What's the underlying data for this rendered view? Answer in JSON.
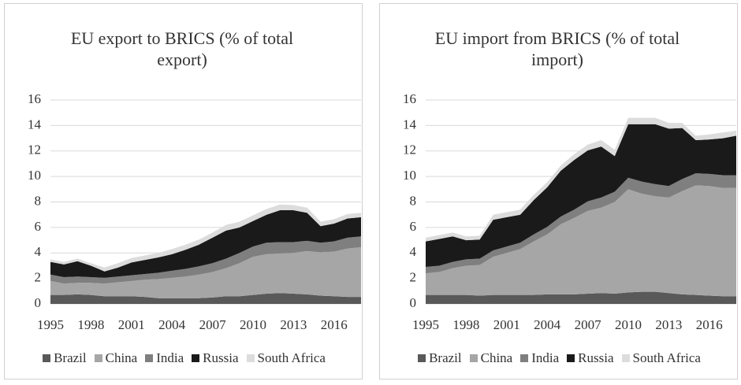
{
  "chart_data": [
    {
      "type": "area",
      "title": "EU export to BRICS (% of total export)",
      "categories": [
        "1995",
        null,
        null,
        "1998",
        null,
        null,
        "2001",
        null,
        null,
        "2004",
        null,
        null,
        "2007",
        null,
        null,
        "2010",
        null,
        null,
        "2013",
        null,
        null,
        "2016",
        null,
        null
      ],
      "series": [
        {
          "name": "Brazil",
          "color": "#595959",
          "values": [
            0.7,
            0.7,
            0.75,
            0.7,
            0.6,
            0.6,
            0.6,
            0.55,
            0.45,
            0.45,
            0.45,
            0.45,
            0.5,
            0.6,
            0.6,
            0.7,
            0.8,
            0.85,
            0.8,
            0.75,
            0.65,
            0.6,
            0.55,
            0.55
          ]
        },
        {
          "name": "China",
          "color": "#a6a6a6",
          "values": [
            1.1,
            0.9,
            0.9,
            0.95,
            1.0,
            1.1,
            1.2,
            1.35,
            1.5,
            1.6,
            1.7,
            1.85,
            2.0,
            2.2,
            2.6,
            3.0,
            3.1,
            3.1,
            3.2,
            3.4,
            3.4,
            3.5,
            3.8,
            3.9
          ]
        },
        {
          "name": "India",
          "color": "#7f7f7f",
          "values": [
            0.5,
            0.5,
            0.5,
            0.45,
            0.45,
            0.45,
            0.45,
            0.45,
            0.5,
            0.55,
            0.6,
            0.65,
            0.7,
            0.75,
            0.8,
            0.8,
            0.9,
            0.9,
            0.85,
            0.8,
            0.75,
            0.8,
            0.85,
            0.85
          ]
        },
        {
          "name": "Russia",
          "color": "#1a1a1a",
          "values": [
            1.0,
            1.0,
            1.2,
            0.9,
            0.5,
            0.7,
            1.0,
            1.1,
            1.2,
            1.3,
            1.5,
            1.7,
            2.0,
            2.2,
            2.0,
            2.0,
            2.2,
            2.5,
            2.5,
            2.2,
            1.3,
            1.4,
            1.5,
            1.5
          ]
        },
        {
          "name": "South Africa",
          "color": "#dcdcdc",
          "values": [
            0.2,
            0.2,
            0.2,
            0.2,
            0.3,
            0.35,
            0.35,
            0.35,
            0.35,
            0.4,
            0.4,
            0.4,
            0.4,
            0.45,
            0.45,
            0.45,
            0.45,
            0.45,
            0.4,
            0.4,
            0.35,
            0.35,
            0.35,
            0.35
          ]
        }
      ],
      "ylim": [
        0,
        16
      ],
      "yticks": [
        0,
        2,
        4,
        6,
        8,
        10,
        12,
        14,
        16
      ],
      "grid": true
    },
    {
      "type": "area",
      "title": "EU import from BRICS (% of total import)",
      "categories": [
        "1995",
        null,
        null,
        "1998",
        null,
        null,
        "2001",
        null,
        null,
        "2004",
        null,
        null,
        "2007",
        null,
        null,
        "2010",
        null,
        null,
        "2013",
        null,
        null,
        "2016",
        null,
        null
      ],
      "series": [
        {
          "name": "Brazil",
          "color": "#595959",
          "values": [
            0.7,
            0.7,
            0.7,
            0.7,
            0.65,
            0.7,
            0.7,
            0.7,
            0.7,
            0.75,
            0.75,
            0.75,
            0.8,
            0.85,
            0.8,
            0.9,
            0.95,
            0.95,
            0.85,
            0.75,
            0.7,
            0.65,
            0.6,
            0.6
          ]
        },
        {
          "name": "China",
          "color": "#a6a6a6",
          "values": [
            1.7,
            1.8,
            2.1,
            2.3,
            2.4,
            3.0,
            3.3,
            3.6,
            4.2,
            4.7,
            5.5,
            6.0,
            6.5,
            6.7,
            7.2,
            8.1,
            7.7,
            7.5,
            7.5,
            8.1,
            8.6,
            8.6,
            8.5,
            8.5
          ]
        },
        {
          "name": "India",
          "color": "#7f7f7f",
          "values": [
            0.5,
            0.5,
            0.5,
            0.5,
            0.5,
            0.5,
            0.5,
            0.5,
            0.55,
            0.6,
            0.6,
            0.65,
            0.75,
            0.8,
            0.8,
            0.9,
            0.95,
            0.95,
            0.9,
            0.95,
            0.95,
            0.95,
            1.0,
            1.0
          ]
        },
        {
          "name": "Russia",
          "color": "#1a1a1a",
          "values": [
            2.0,
            2.1,
            2.0,
            1.5,
            1.5,
            2.4,
            2.3,
            2.2,
            2.7,
            3.1,
            3.6,
            3.9,
            4.0,
            4.0,
            2.8,
            4.2,
            4.5,
            4.7,
            4.5,
            4.0,
            2.6,
            2.7,
            2.9,
            3.1
          ]
        },
        {
          "name": "South Africa",
          "color": "#dcdcdc",
          "values": [
            0.3,
            0.3,
            0.3,
            0.3,
            0.3,
            0.4,
            0.4,
            0.4,
            0.4,
            0.4,
            0.4,
            0.45,
            0.45,
            0.5,
            0.5,
            0.5,
            0.5,
            0.5,
            0.45,
            0.4,
            0.35,
            0.4,
            0.45,
            0.4
          ]
        }
      ],
      "ylim": [
        0,
        16
      ],
      "yticks": [
        0,
        2,
        4,
        6,
        8,
        10,
        12,
        14,
        16
      ],
      "grid": true
    }
  ]
}
